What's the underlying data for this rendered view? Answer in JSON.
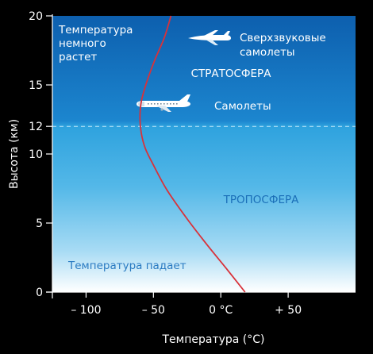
{
  "chart_data": {
    "type": "line",
    "xlabel": "Температура (°C)",
    "ylabel": "Высота (км)",
    "xlim": [
      -125,
      100
    ],
    "ylim": [
      0,
      20
    ],
    "x_ticks": [
      {
        "value": -100,
        "label": "– 100"
      },
      {
        "value": -50,
        "label": "– 50"
      },
      {
        "value": 0,
        "label": "0 °C"
      },
      {
        "value": 50,
        "label": "+ 50"
      }
    ],
    "y_ticks": [
      {
        "value": 0,
        "label": "0"
      },
      {
        "value": 5,
        "label": "5"
      },
      {
        "value": 10,
        "label": "10"
      },
      {
        "value": 12,
        "label": "12"
      },
      {
        "value": 15,
        "label": "15"
      },
      {
        "value": 20,
        "label": "20"
      }
    ],
    "tropopause_km": 12,
    "series": [
      {
        "color": "#d8323a",
        "points": [
          {
            "x": 18,
            "y": 0
          },
          {
            "x": 5,
            "y": 1.6
          },
          {
            "x": -10,
            "y": 3.4
          },
          {
            "x": -25,
            "y": 5.3
          },
          {
            "x": -40,
            "y": 7.4
          },
          {
            "x": -50,
            "y": 9.2
          },
          {
            "x": -56,
            "y": 10.4
          },
          {
            "x": -59,
            "y": 11.5
          },
          {
            "x": -60,
            "y": 12.6
          },
          {
            "x": -59,
            "y": 13.8
          },
          {
            "x": -55,
            "y": 15.2
          },
          {
            "x": -49,
            "y": 16.8
          },
          {
            "x": -42,
            "y": 18.4
          },
          {
            "x": -37,
            "y": 20
          }
        ]
      }
    ],
    "annotations": {
      "temp_rising": "Температура\nнемного\nрастет",
      "supersonic": "Сверхзвуковые\nсамолеты",
      "stratosphere": "СТРАТОСФЕРА",
      "airplanes": "Самолеты",
      "troposphere": "ТРОПОСФЕРА",
      "temp_falling": "Температура падает"
    },
    "colors": {
      "stratosphere_top": "#0f6fbf",
      "troposphere_mid": "#2fa8e2",
      "ground": "#e8f4fc",
      "curve": "#d8323a",
      "troposphere_label": "#1b6fb8",
      "temp_falling_label": "#2a7bc2"
    }
  }
}
